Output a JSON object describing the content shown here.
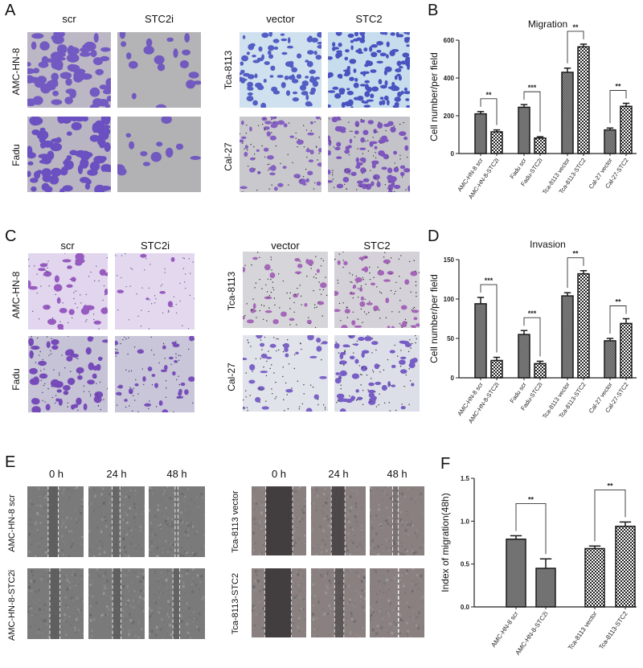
{
  "panels": {
    "A": {
      "label": "A",
      "left_group": {
        "columns": [
          "scr",
          "STC2i"
        ],
        "rows": [
          "AMC-HN-8",
          "Fadu"
        ]
      },
      "right_group": {
        "columns": [
          "vector",
          "STC2"
        ],
        "rows": [
          "Tca-8113",
          "Cal-27"
        ]
      }
    },
    "B": {
      "label": "B"
    },
    "C": {
      "label": "C",
      "left_group": {
        "columns": [
          "scr",
          "STC2i"
        ],
        "rows": [
          "AMC-HN-8",
          "Fadu"
        ]
      },
      "right_group": {
        "columns": [
          "vector",
          "STC2"
        ],
        "rows": [
          "Tca-8113",
          "Cal-27"
        ]
      }
    },
    "D": {
      "label": "D"
    },
    "E": {
      "label": "E",
      "left_group": {
        "columns": [
          "0 h",
          "24 h",
          "48 h"
        ],
        "rows": [
          "AMC-HN-8 scr",
          "AMC-HN-8-STC2i"
        ]
      },
      "right_group": {
        "columns": [
          "0 h",
          "24 h",
          "48 h"
        ],
        "rows": [
          "Tca-8113 vector",
          "Tca-8113-STC2"
        ]
      }
    },
    "F": {
      "label": "F"
    }
  },
  "colors": {
    "stain_purple": "#6a4fc0",
    "stain_violet": "#9b5fb8",
    "bg_grey": "#b8b6b8",
    "bg_lavender": "#d9cde6",
    "scratch_grey": "#6b6b6b",
    "bar_stroke": "#1a1a1a"
  },
  "chart_data": [
    {
      "panel": "B",
      "type": "bar",
      "title": "Migration",
      "xlabel": "",
      "ylabel": "Cell number/per field",
      "ylim": [
        0,
        600
      ],
      "yticks": [
        0,
        200,
        400,
        600
      ],
      "grid": false,
      "categories": [
        "AMC-HN-8 scr",
        "AMC-HN-8-STC2i",
        "Fadu scr",
        "Fadu-STC2i",
        "Tca-8113 vector",
        "Tca-8113-STC2",
        "Cal-27 vector",
        "Cal-27-STC2"
      ],
      "values": [
        210,
        115,
        245,
        82,
        430,
        565,
        125,
        250
      ],
      "errors": [
        12,
        10,
        14,
        7,
        22,
        14,
        10,
        16
      ],
      "patterns": [
        "fine",
        "checker",
        "fine",
        "checker",
        "fine",
        "checker",
        "fine",
        "checker"
      ],
      "significance": [
        {
          "pair": [
            0,
            1
          ],
          "label": "**"
        },
        {
          "pair": [
            2,
            3
          ],
          "label": "***"
        },
        {
          "pair": [
            4,
            5
          ],
          "label": "**"
        },
        {
          "pair": [
            6,
            7
          ],
          "label": "**"
        }
      ]
    },
    {
      "panel": "D",
      "type": "bar",
      "title": "Invasion",
      "xlabel": "",
      "ylabel": "Cell number/per field",
      "ylim": [
        0,
        150
      ],
      "yticks": [
        0,
        50,
        100,
        150
      ],
      "grid": false,
      "categories": [
        "AMC-HN-8 scr",
        "AMC-HN-8-STC2i",
        "Fadu scr",
        "Fadu-STC2i",
        "Tca-8113 vector",
        "Tca-8113-STC2",
        "Cal-27 vector",
        "Cal-27-STC2"
      ],
      "values": [
        94,
        22,
        55,
        18,
        104,
        132,
        47,
        69
      ],
      "errors": [
        8,
        4,
        5,
        3,
        4,
        4,
        3,
        6
      ],
      "patterns": [
        "fine",
        "checker",
        "fine",
        "checker",
        "fine",
        "checker",
        "fine",
        "checker"
      ],
      "significance": [
        {
          "pair": [
            0,
            1
          ],
          "label": "***"
        },
        {
          "pair": [
            2,
            3
          ],
          "label": "***"
        },
        {
          "pair": [
            4,
            5
          ],
          "label": "**"
        },
        {
          "pair": [
            6,
            7
          ],
          "label": "**"
        }
      ]
    },
    {
      "panel": "F",
      "type": "bar",
      "title": "",
      "xlabel": "",
      "ylabel": "Index of migration(48h)",
      "ylim": [
        0,
        1.5
      ],
      "yticks": [
        "0.0",
        "0.5",
        "1.0",
        "1.5"
      ],
      "grid": false,
      "categories": [
        "AMC-HN-8 scr",
        "AMC-HN-8-STC2i",
        "Tca-8113 vector",
        "Tca-8113-STC2"
      ],
      "values": [
        0.79,
        0.45,
        0.68,
        0.94
      ],
      "errors": [
        0.04,
        0.11,
        0.03,
        0.05
      ],
      "patterns": [
        "fine",
        "fine",
        "checker",
        "checker"
      ],
      "significance": [
        {
          "pair": [
            0,
            1
          ],
          "label": "**"
        },
        {
          "pair": [
            2,
            3
          ],
          "label": "**"
        }
      ]
    }
  ]
}
